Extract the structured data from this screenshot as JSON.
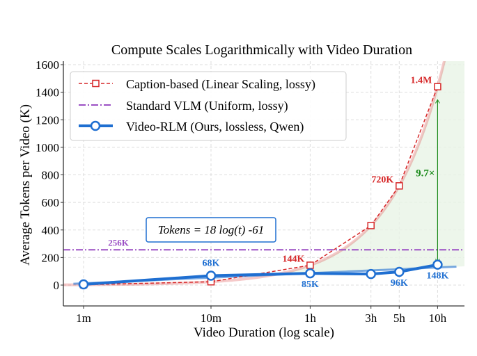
{
  "chart_data": {
    "type": "line",
    "title": "Compute Scales Logarithmically with Video Duration",
    "xlabel": "Video Duration (log scale)",
    "ylabel": "Average Tokens per Video (K)",
    "x_scale": "log",
    "x_unit": "minutes",
    "x": [
      1,
      10,
      60,
      180,
      300,
      600
    ],
    "xtick_labels": [
      "1m",
      "10m",
      "1h",
      "3h",
      "5h",
      "10h"
    ],
    "ylim": [
      -150,
      1600
    ],
    "yticks": [
      0,
      200,
      400,
      600,
      800,
      1000,
      1200,
      1400,
      1600
    ],
    "grid": true,
    "legend_position": "top-left",
    "series": [
      {
        "name": "Caption-based (Linear Scaling, lossy)",
        "color": "#d62728",
        "style": "dashed",
        "marker": "square",
        "values": [
          2.4,
          24,
          144,
          432,
          720,
          1440
        ],
        "labels": [
          null,
          null,
          "144K",
          null,
          "720K",
          "1.4M"
        ]
      },
      {
        "name": "Standard VLM (Uniform, lossy)",
        "color": "#9b4fc4",
        "style": "dash-dot",
        "constant": 256,
        "label": "256K"
      },
      {
        "name": "Video-RLM (Ours, lossless, Qwen)",
        "color": "#1f6fd1",
        "style": "solid",
        "marker": "circle",
        "values": [
          5,
          68,
          85,
          80,
          96,
          148
        ],
        "labels": [
          null,
          "68K",
          "85K",
          null,
          "96K",
          "148K"
        ]
      }
    ],
    "annotations": {
      "formula": "Tokens = 18 log(t) -61",
      "ratio": "9.7×",
      "fill_color": "#e8f4e6",
      "arrow_color": "#1a8a1a"
    }
  }
}
